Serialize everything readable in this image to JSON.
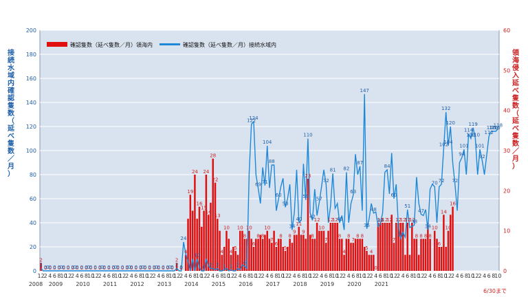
{
  "chart_data": {
    "type": "bar+line",
    "title": "",
    "y_left_label": "接続水域内確認隻数（延べ隻数／月）",
    "y_right_label": "領海侵入延べ隻数（延べ隻数／月）",
    "y_left_range": [
      0,
      200
    ],
    "y_left_ticks": [
      0,
      20,
      40,
      60,
      80,
      100,
      120,
      140,
      160,
      180,
      200
    ],
    "y_right_range": [
      0,
      60
    ],
    "y_right_ticks": [
      0,
      10,
      20,
      30,
      40,
      50,
      60
    ],
    "x_end_note": "6/30まで",
    "grid": true,
    "series": [
      {
        "name": "確認隻数（延べ隻数／月）領海内",
        "axis": "right",
        "color": "#e01010",
        "values": [
          2,
          0,
          0,
          0,
          0,
          0,
          0,
          0,
          0,
          0,
          0,
          0,
          0,
          0,
          0,
          0,
          0,
          0,
          0,
          0,
          0,
          0,
          0,
          0,
          0,
          0,
          0,
          0,
          0,
          0,
          0,
          0,
          0,
          0,
          0,
          0,
          0,
          0,
          0,
          0,
          0,
          0,
          0,
          0,
          0,
          0,
          0,
          0,
          0,
          0,
          0,
          0,
          0,
          0,
          0,
          0,
          0,
          0,
          0,
          0,
          2,
          0,
          0,
          0,
          4,
          13,
          19,
          15,
          24,
          13,
          16,
          11,
          15,
          24,
          14,
          17,
          28,
          22,
          13,
          10,
          4,
          6,
          10,
          8,
          4,
          6,
          5,
          4,
          10,
          10,
          8,
          8,
          10,
          8,
          6,
          8,
          8,
          9,
          8,
          9,
          10,
          8,
          7,
          10,
          6,
          8,
          8,
          6,
          5,
          6,
          8,
          7,
          9,
          9,
          11,
          9,
          9,
          8,
          23,
          9,
          8,
          8,
          12,
          10,
          10,
          10,
          7,
          10,
          12,
          12,
          12,
          12,
          8,
          8,
          4,
          8,
          8,
          7,
          7,
          8,
          8,
          8,
          8,
          6,
          5,
          4,
          4,
          4,
          0,
          12,
          12,
          12,
          12,
          12,
          12,
          14,
          7,
          12,
          12,
          12,
          12,
          4,
          12,
          4,
          12,
          8,
          8,
          4,
          8,
          8,
          8,
          12,
          8,
          0,
          10,
          8,
          6,
          6,
          14,
          6,
          10,
          14,
          16
        ]
      },
      {
        "name": "確認隻数（延べ隻数／月）接続水域内",
        "axis": "left",
        "color": "#1e88d8",
        "values": [
          2,
          0,
          0,
          0,
          0,
          0,
          0,
          0,
          0,
          0,
          0,
          0,
          0,
          0,
          0,
          0,
          0,
          0,
          0,
          0,
          0,
          0,
          0,
          0,
          0,
          0,
          0,
          0,
          0,
          0,
          0,
          0,
          0,
          0,
          0,
          0,
          0,
          0,
          0,
          0,
          0,
          0,
          0,
          0,
          0,
          0,
          0,
          0,
          0,
          0,
          0,
          0,
          0,
          0,
          0,
          0,
          0,
          0,
          0,
          0,
          2,
          0,
          0,
          24,
          14,
          8,
          0,
          10,
          0,
          10,
          3,
          0,
          0,
          10,
          4,
          2,
          2,
          1,
          2,
          0,
          0,
          1,
          2,
          0,
          1,
          0,
          0,
          2,
          1,
          5,
          4,
          2,
          81,
          122,
          124,
          80,
          69,
          56,
          86,
          71,
          104,
          69,
          88,
          88,
          50,
          60,
          70,
          77,
          53,
          60,
          72,
          34,
          49,
          84,
          40,
          42,
          89,
          59,
          110,
          48,
          42,
          68,
          46,
          57,
          70,
          84,
          72,
          40,
          54,
          81,
          52,
          56,
          40,
          46,
          34,
          82,
          40,
          56,
          63,
          97,
          80,
          87,
          50,
          147,
          35,
          43,
          56,
          48,
          49,
          37,
          39,
          48,
          82,
          84,
          64,
          98,
          60,
          72,
          36,
          27,
          32,
          28,
          51,
          36,
          37,
          38,
          78,
          56,
          47,
          46,
          51,
          34,
          68,
          72,
          70,
          40,
          70,
          72,
          102,
          132,
          104,
          120,
          90,
          72,
          50,
          90,
          94,
          101,
          80,
          114,
          110,
          119,
          110,
          80,
          101,
          92,
          80,
          96,
          112,
          116,
          116,
          116,
          118
        ]
      }
    ],
    "x_year_labels": [
      "2008",
      "2009",
      "2010",
      "2011",
      "2012",
      "2013",
      "2014",
      "2015",
      "2016",
      "2017",
      "2018",
      "2019",
      "2020",
      "2021"
    ],
    "x_month_pattern": [
      "12",
      "2",
      "4",
      "6",
      "8",
      "10"
    ]
  }
}
